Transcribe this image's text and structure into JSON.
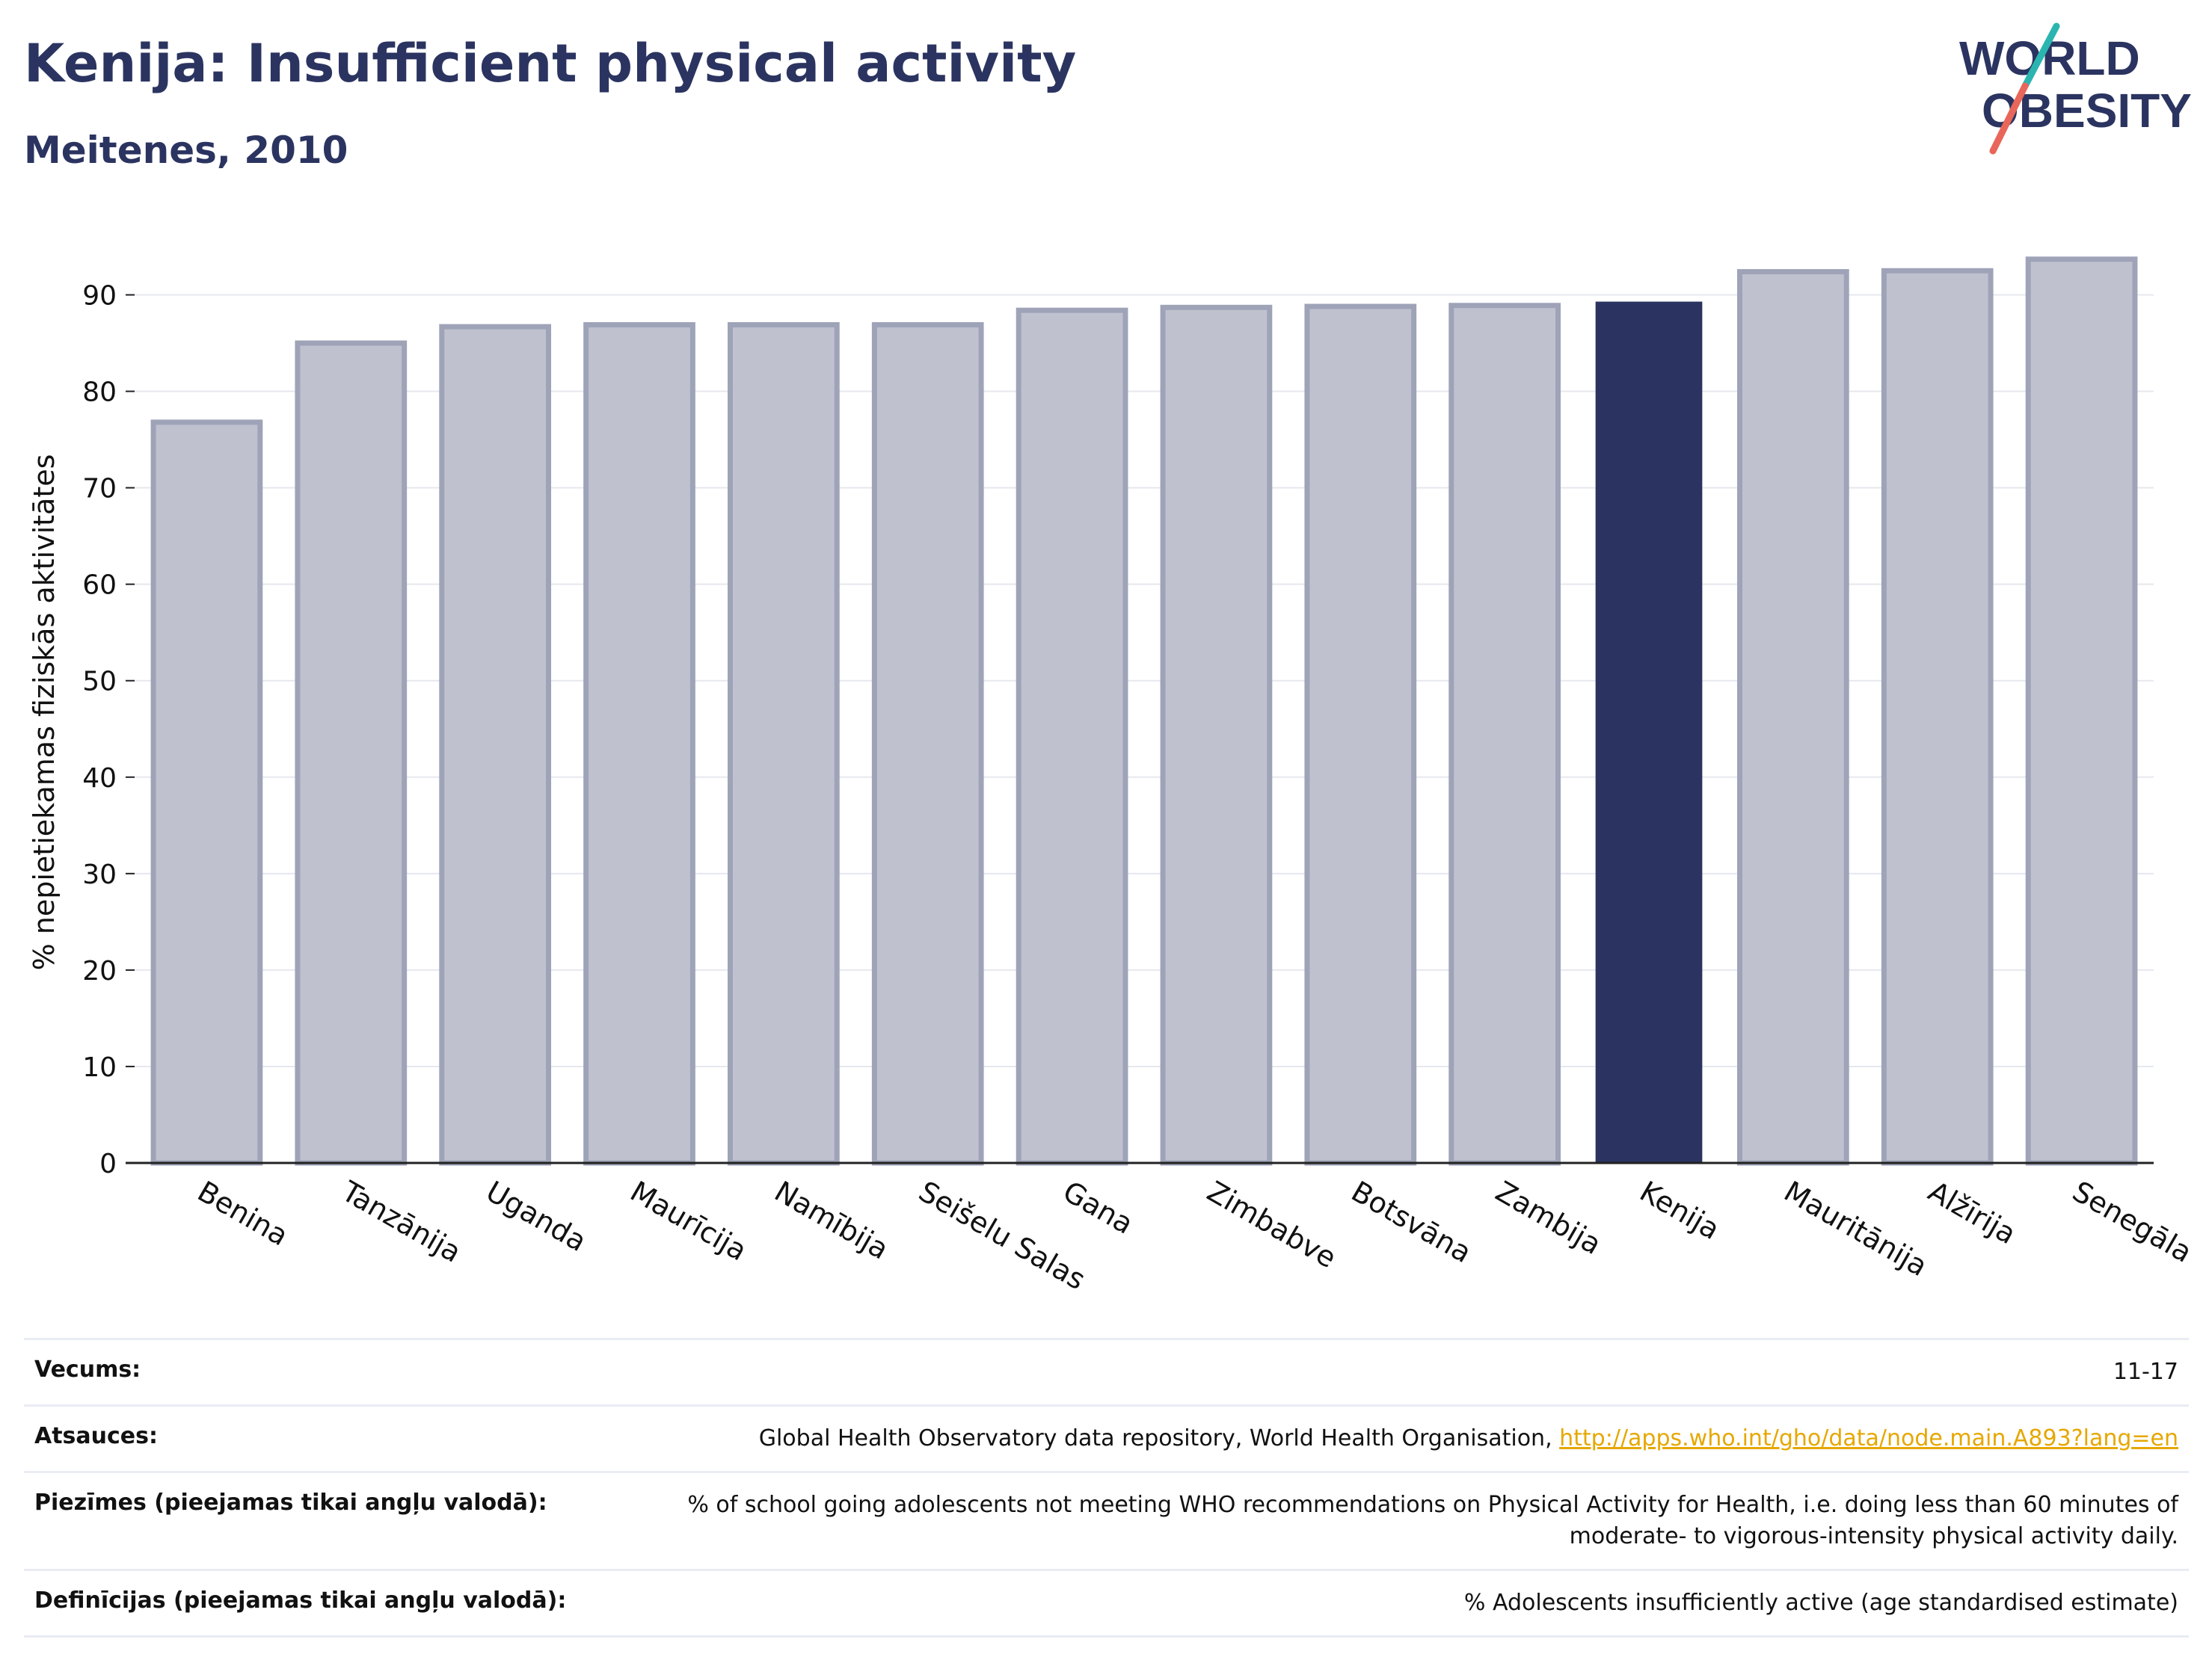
{
  "header": {
    "title": "Kenija: Insufficient physical activity",
    "subtitle": "Meitenes, 2010"
  },
  "logo": {
    "line1": "WORLD",
    "line2": "OBESITY",
    "colors": {
      "text": "#2b3460",
      "slash_red": "#e8665a",
      "slash_teal": "#2bb5b0"
    }
  },
  "colors": {
    "bar_default": "#bfc2ce",
    "bar_default_border": "#9ea3b8",
    "bar_highlight": "#2b3460",
    "axis": "#222222",
    "grid": "#e6e8ef",
    "title": "#2b3460"
  },
  "chart_data": {
    "type": "bar",
    "title": "",
    "xlabel": "",
    "ylabel": "% nepietiekamas fiziskās aktivitātes",
    "ylim": [
      0,
      95
    ],
    "yticks": [
      0,
      10,
      20,
      30,
      40,
      50,
      60,
      70,
      80,
      90
    ],
    "grid": true,
    "categories": [
      "Benina",
      "Tanzānija",
      "Uganda",
      "Maurīcija",
      "Namībija",
      "Seišelu Salas",
      "Gana",
      "Zimbabve",
      "Botsvāna",
      "Zambija",
      "Kenija",
      "Mauritānija",
      "Alžīrija",
      "Senegāla"
    ],
    "values": [
      76.8,
      85.0,
      86.7,
      86.9,
      86.9,
      86.9,
      88.4,
      88.7,
      88.8,
      88.9,
      89.3,
      92.4,
      92.5,
      93.7
    ],
    "highlight": "Kenija"
  },
  "meta": {
    "rows": [
      {
        "label": "Vecums:",
        "value": "11-17"
      },
      {
        "label": "Atsauces:",
        "value": "Global Health Observatory data repository, World Health Organisation, ",
        "link": "http://apps.who.int/gho/data/node.main.A893?lang=en"
      },
      {
        "label": "Piezīmes (pieejamas tikai angļu valodā):",
        "value": "% of school going adolescents not meeting WHO recommendations on Physical Activity for Health, i.e. doing less than 60 minutes of moderate- to vigorous-intensity physical activity daily."
      },
      {
        "label": "Definīcijas (pieejamas tikai angļu valodā):",
        "value": "% Adolescents insufficiently active (age standardised estimate)"
      }
    ]
  }
}
